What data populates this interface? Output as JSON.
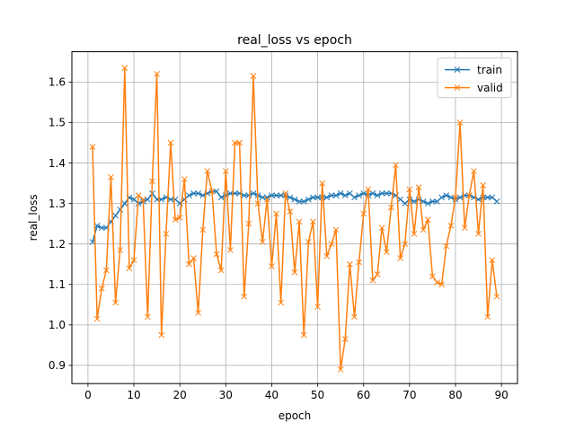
{
  "chart_data": {
    "type": "line",
    "title": "real_loss vs epoch",
    "xlabel": "epoch",
    "ylabel": "real_loss",
    "xlim": [
      -3.5,
      93.5
    ],
    "ylim": [
      0.855,
      1.675
    ],
    "xticks": [
      0,
      10,
      20,
      30,
      40,
      50,
      60,
      70,
      80,
      90
    ],
    "yticks": [
      0.9,
      1.0,
      1.1,
      1.2,
      1.3,
      1.4,
      1.5,
      1.6
    ],
    "ytick_labels": [
      "0.9",
      "1.0",
      "1.1",
      "1.2",
      "1.3",
      "1.4",
      "1.5",
      "1.6"
    ],
    "grid": true,
    "legend_position": "top-right",
    "marker": "x",
    "series": [
      {
        "name": "train",
        "color": "#1f77b4",
        "x": [
          1,
          2,
          3,
          4,
          5,
          6,
          7,
          8,
          9,
          10,
          11,
          12,
          13,
          14,
          15,
          16,
          17,
          18,
          19,
          20,
          21,
          22,
          23,
          24,
          25,
          26,
          27,
          28,
          29,
          30,
          31,
          32,
          33,
          34,
          35,
          36,
          37,
          38,
          39,
          40,
          41,
          42,
          43,
          44,
          45,
          46,
          47,
          48,
          49,
          50,
          51,
          52,
          53,
          54,
          55,
          56,
          57,
          58,
          59,
          60,
          61,
          62,
          63,
          64,
          65,
          66,
          67,
          68,
          69,
          70,
          71,
          72,
          73,
          74,
          75,
          76,
          77,
          78,
          79,
          80,
          81,
          82,
          83,
          84,
          85,
          86,
          87,
          88,
          89
        ],
        "y": [
          1.205,
          1.245,
          1.24,
          1.24,
          1.255,
          1.27,
          1.285,
          1.3,
          1.315,
          1.31,
          1.3,
          1.305,
          1.31,
          1.325,
          1.31,
          1.31,
          1.315,
          1.31,
          1.31,
          1.3,
          1.31,
          1.32,
          1.325,
          1.325,
          1.32,
          1.325,
          1.33,
          1.33,
          1.315,
          1.32,
          1.325,
          1.325,
          1.325,
          1.32,
          1.32,
          1.325,
          1.32,
          1.315,
          1.315,
          1.32,
          1.32,
          1.32,
          1.32,
          1.315,
          1.31,
          1.305,
          1.305,
          1.31,
          1.315,
          1.315,
          1.315,
          1.315,
          1.32,
          1.32,
          1.325,
          1.32,
          1.325,
          1.315,
          1.32,
          1.325,
          1.32,
          1.325,
          1.32,
          1.325,
          1.325,
          1.325,
          1.32,
          1.31,
          1.3,
          1.31,
          1.305,
          1.31,
          1.305,
          1.3,
          1.305,
          1.305,
          1.315,
          1.32,
          1.315,
          1.31,
          1.315,
          1.32,
          1.32,
          1.315,
          1.31,
          1.315,
          1.315,
          1.315,
          1.305
        ]
      },
      {
        "name": "valid",
        "color": "#ff7f0e",
        "x": [
          1,
          2,
          3,
          4,
          5,
          6,
          7,
          8,
          9,
          10,
          11,
          12,
          13,
          14,
          15,
          16,
          17,
          18,
          19,
          20,
          21,
          22,
          23,
          24,
          25,
          26,
          27,
          28,
          29,
          30,
          31,
          32,
          33,
          34,
          35,
          36,
          37,
          38,
          39,
          40,
          41,
          42,
          43,
          44,
          45,
          46,
          47,
          48,
          49,
          50,
          51,
          52,
          53,
          54,
          55,
          56,
          57,
          58,
          59,
          60,
          61,
          62,
          63,
          64,
          65,
          66,
          67,
          68,
          69,
          70,
          71,
          72,
          73,
          74,
          75,
          76,
          77,
          78,
          79,
          80,
          81,
          82,
          83,
          84,
          85,
          86,
          87,
          88,
          89
        ],
        "y": [
          1.44,
          1.015,
          1.09,
          1.135,
          1.365,
          1.055,
          1.185,
          1.635,
          1.14,
          1.16,
          1.32,
          1.31,
          1.02,
          1.355,
          1.62,
          0.975,
          1.225,
          1.45,
          1.26,
          1.265,
          1.36,
          1.15,
          1.165,
          1.03,
          1.235,
          1.38,
          1.33,
          1.175,
          1.135,
          1.38,
          1.185,
          1.45,
          1.45,
          1.07,
          1.25,
          1.615,
          1.3,
          1.205,
          1.31,
          1.145,
          1.275,
          1.055,
          1.325,
          1.28,
          1.13,
          1.255,
          0.975,
          1.205,
          1.255,
          1.045,
          1.35,
          1.17,
          1.2,
          1.235,
          0.89,
          0.965,
          1.15,
          1.02,
          1.155,
          1.275,
          1.335,
          1.11,
          1.125,
          1.24,
          1.18,
          1.29,
          1.395,
          1.165,
          1.2,
          1.335,
          1.225,
          1.34,
          1.235,
          1.26,
          1.12,
          1.105,
          1.1,
          1.195,
          1.245,
          1.315,
          1.5,
          1.24,
          1.32,
          1.38,
          1.225,
          1.345,
          1.02,
          1.16,
          1.07
        ]
      }
    ]
  }
}
